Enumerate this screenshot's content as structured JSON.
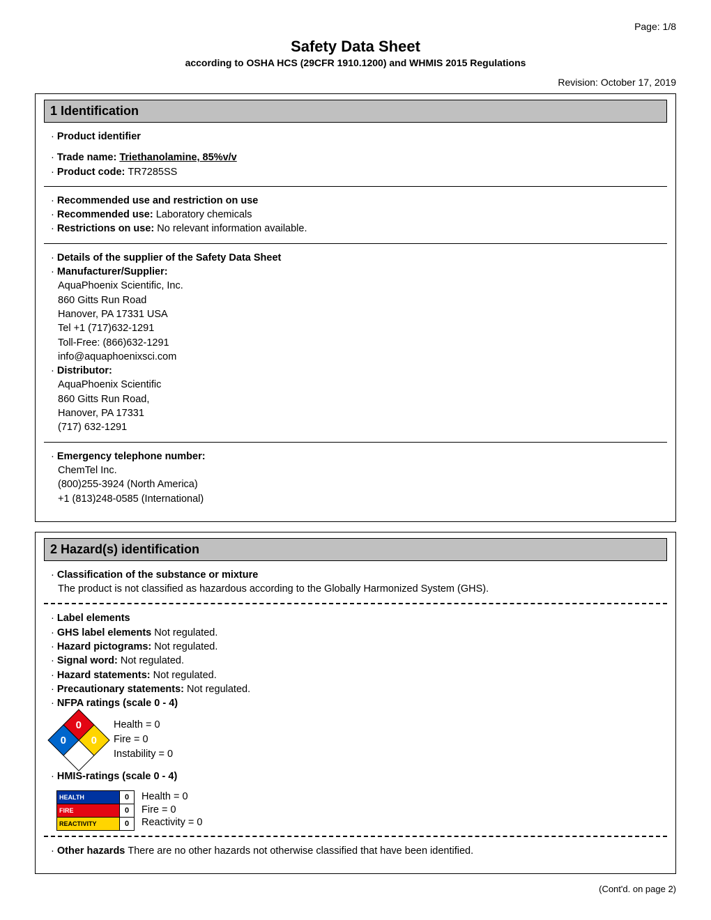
{
  "page_number": "Page: 1/8",
  "title": "Safety Data Sheet",
  "subtitle": "according to OSHA HCS (29CFR 1910.1200) and WHMIS 2015 Regulations",
  "revision": "Revision: October 17, 2019",
  "section1": {
    "header": "1 Identification",
    "product_identifier_label": "Product identifier",
    "trade_name_label": "Trade name: ",
    "trade_name_value": "Triethanolamine, 85%v/v",
    "product_code_label": "Product code: ",
    "product_code_value": "TR7285SS",
    "rec_use_header": "Recommended use and restriction on use",
    "rec_use_label": "Recommended use: ",
    "rec_use_value": "Laboratory chemicals",
    "restrictions_label": "Restrictions on use: ",
    "restrictions_value": "No relevant information available.",
    "supplier_header": "Details of the supplier of the Safety Data Sheet",
    "manufacturer_label": "Manufacturer/Supplier:",
    "manufacturer_lines": [
      "AquaPhoenix Scientific, Inc.",
      "860 Gitts Run Road",
      "Hanover, PA 17331 USA",
      "Tel +1 (717)632-1291",
      "Toll-Free: (866)632-1291",
      "info@aquaphoenixsci.com"
    ],
    "distributor_label": "Distributor:",
    "distributor_lines": [
      "AquaPhoenix Scientific",
      " 860 Gitts Run Road,",
      "  Hanover, PA 17331",
      " (717) 632-1291"
    ],
    "emergency_label": "Emergency telephone number:",
    "emergency_lines": [
      "ChemTel Inc.",
      " (800)255-3924 (North America)",
      " +1 (813)248-0585 (International)"
    ]
  },
  "section2": {
    "header": "2 Hazard(s) identification",
    "classification_label": "Classification of the substance or mixture",
    "classification_text": "The product is not classified as hazardous according to the Globally Harmonized System (GHS).",
    "label_elements_label": "Label elements",
    "ghs_label": "GHS label elements ",
    "ghs_value": "Not regulated.",
    "pictograms_label": "Hazard pictograms: ",
    "pictograms_value": "Not regulated.",
    "signal_label": "Signal word: ",
    "signal_value": "Not regulated.",
    "hazard_stmt_label": "Hazard statements: ",
    "hazard_stmt_value": "Not regulated.",
    "precaution_label": "Precautionary statements: ",
    "precaution_value": "Not regulated.",
    "nfpa_label": "NFPA ratings (scale 0 - 4)",
    "nfpa": {
      "health_val": "0",
      "fire_val": "0",
      "instability_val": "0",
      "health_text": "Health = 0",
      "fire_text": "Fire = 0",
      "instability_text": "Instability = 0",
      "color_fire": "#e30613",
      "color_health": "#0066cc",
      "color_react": "#ffd500",
      "color_special": "#ffffff"
    },
    "hmis_label": "HMIS-ratings (scale 0 - 4)",
    "hmis": {
      "health_bar": "HEALTH",
      "fire_bar": "FIRE",
      "react_bar": "REACTIVITY",
      "health_num": "0",
      "fire_num": "0",
      "react_num": "0",
      "health_text": "Health = 0",
      "fire_text": "Fire = 0",
      "react_text": "Reactivity = 0",
      "color_health": "#0033a0",
      "color_fire": "#e30613",
      "color_react": "#ffd500"
    },
    "other_hazards_label": "Other hazards ",
    "other_hazards_value": "There are no other hazards not otherwise classified that have been identified."
  },
  "contd": "(Cont'd. on page 2)"
}
